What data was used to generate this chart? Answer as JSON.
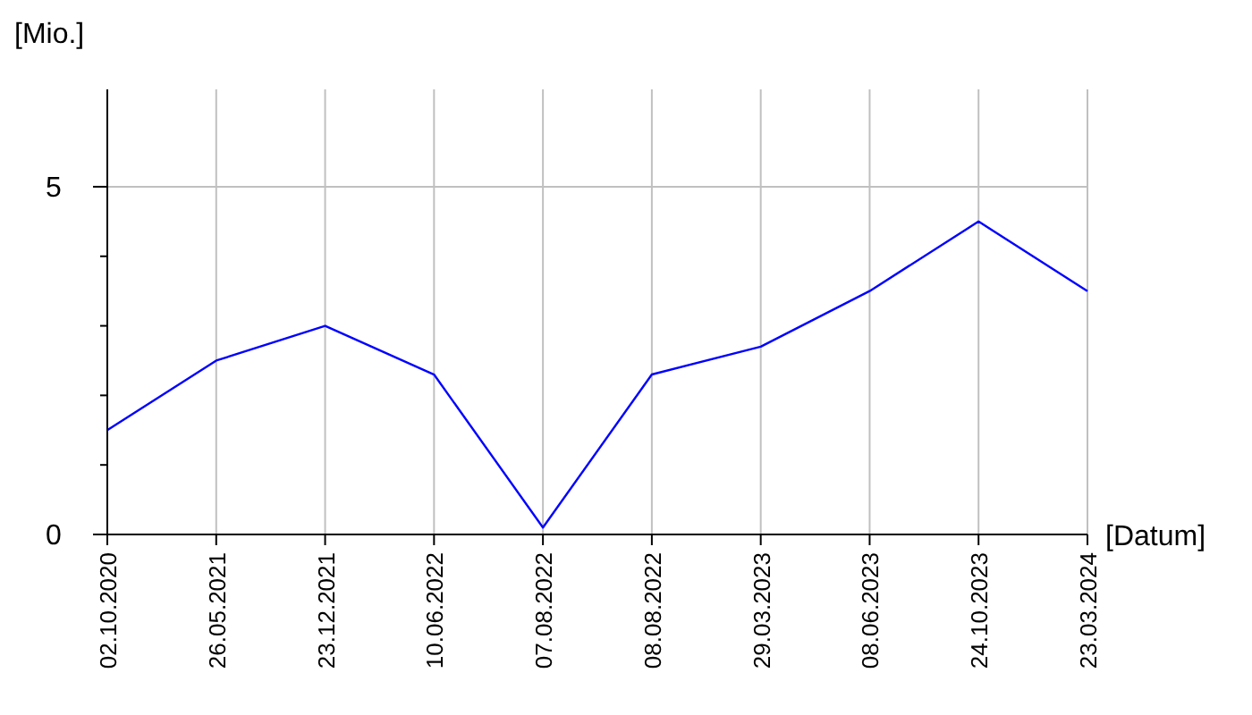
{
  "chart_data": {
    "type": "line",
    "xlabel": "[Datum]",
    "ylabel": "[Mio.]",
    "categories": [
      "02.10.2020",
      "26.05.2021",
      "23.12.2021",
      "10.06.2022",
      "07.08.2022",
      "08.08.2022",
      "29.03.2023",
      "08.06.2023",
      "24.10.2023",
      "23.03.2024"
    ],
    "series": [
      {
        "color": "#0000ff",
        "values": [
          1.5,
          2.5,
          3.0,
          2.3,
          0.1,
          2.3,
          2.7,
          3.5,
          4.5,
          3.5
        ]
      }
    ],
    "ylim": [
      0,
      6.4
    ],
    "yticks": [
      0,
      {
        "value": 1,
        "label": null
      },
      {
        "value": 2,
        "label": null
      },
      {
        "value": 3,
        "label": null
      },
      {
        "value": 4,
        "label": null
      },
      5
    ],
    "grid": true,
    "marker": "none",
    "line_style": "solid"
  }
}
